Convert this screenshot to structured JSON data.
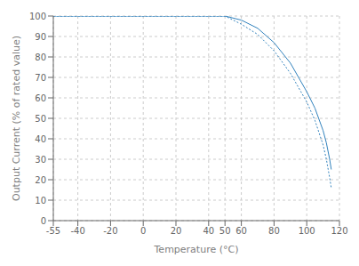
{
  "chart_data": {
    "type": "line",
    "xlabel": "Temperature (°C)",
    "ylabel": "Output Current (% of rated value)",
    "x": [
      -55,
      0,
      50,
      60,
      70,
      80,
      90,
      100,
      105,
      110,
      112,
      114,
      115
    ],
    "series": [
      {
        "values": [
          100,
          100,
          100,
          98,
          94,
          87,
          77,
          63,
          55,
          44,
          38,
          30,
          25
        ],
        "line_style": "solid"
      },
      {
        "values": [
          100,
          100,
          100,
          96,
          91,
          83,
          72,
          58,
          49,
          37,
          30,
          21,
          16
        ],
        "line_style": "dotted"
      }
    ],
    "xlim": [
      -55,
      120
    ],
    "ylim": [
      0,
      100
    ],
    "xticks": [
      -55,
      -40,
      -20,
      0,
      20,
      40,
      50,
      60,
      80,
      100,
      120
    ],
    "yticks": [
      0,
      10,
      20,
      30,
      40,
      50,
      60,
      70,
      80,
      90,
      100
    ],
    "grid": true
  }
}
